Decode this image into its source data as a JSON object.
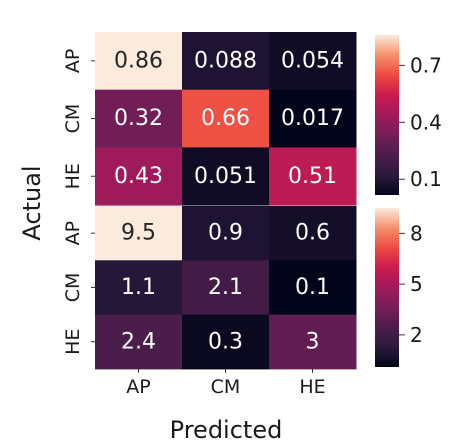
{
  "chart_data": [
    {
      "type": "heatmap",
      "title": "",
      "rows": [
        "AP",
        "CM",
        "HE"
      ],
      "columns": [
        "AP",
        "CM",
        "HE"
      ],
      "values": [
        [
          0.86,
          0.088,
          0.054
        ],
        [
          0.32,
          0.66,
          0.017
        ],
        [
          0.43,
          0.051,
          0.51
        ]
      ],
      "value_labels": [
        [
          "0.86",
          "0.088",
          "0.054"
        ],
        [
          "0.32",
          "0.66",
          "0.017"
        ],
        [
          "0.43",
          "0.051",
          "0.51"
        ]
      ],
      "colorbar": {
        "range": [
          0.017,
          0.86
        ],
        "ticks": [
          0.1,
          0.4,
          0.7
        ],
        "tick_labels": [
          "0.1",
          "0.4",
          "0.7"
        ]
      }
    },
    {
      "type": "heatmap",
      "title": "",
      "rows": [
        "AP",
        "CM",
        "HE"
      ],
      "columns": [
        "AP",
        "CM",
        "HE"
      ],
      "values": [
        [
          9.5,
          0.9,
          0.6
        ],
        [
          1.1,
          2.1,
          0.1
        ],
        [
          2.4,
          0.3,
          3
        ]
      ],
      "value_labels": [
        [
          "9.5",
          "0.9",
          "0.6"
        ],
        [
          "1.1",
          "2.1",
          "0.1"
        ],
        [
          "2.4",
          "0.3",
          "3"
        ]
      ],
      "colorbar": {
        "range": [
          0.1,
          9.5
        ],
        "ticks": [
          2,
          5,
          8
        ],
        "tick_labels": [
          "2",
          "5",
          "8"
        ]
      }
    }
  ],
  "axes": {
    "xlabel": "Predicted",
    "ylabel": "Actual"
  },
  "colormap": "rocket"
}
